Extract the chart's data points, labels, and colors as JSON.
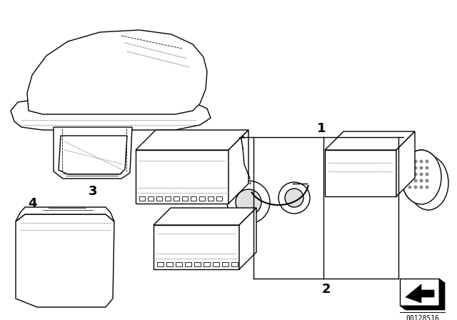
{
  "background_color": "#ffffff",
  "line_color": "#000000",
  "label_1": "1",
  "label_2": "2",
  "label_3": "3",
  "label_4": "4",
  "part_number": "00128516",
  "label_fontsize": 13,
  "label_bold": true,
  "fig_w": 6.4,
  "fig_h": 4.48,
  "dpi": 100
}
